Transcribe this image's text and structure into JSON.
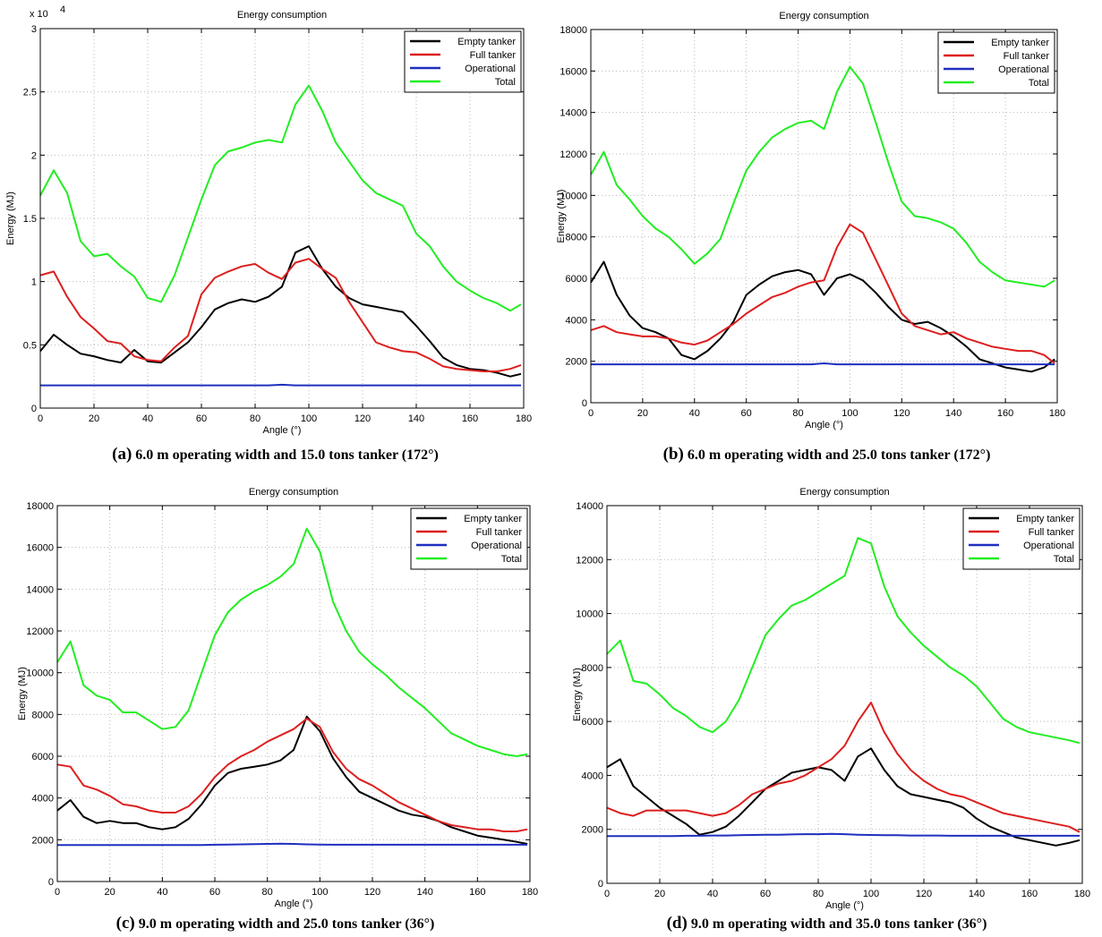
{
  "colors": {
    "empty": "#000000",
    "full": "#dd1f1f",
    "operational": "#1f2fbf",
    "total": "#22ee22",
    "grid": "#b8b8b8"
  },
  "panels": [
    {
      "letter": "(a)",
      "caption": "6.0 m operating width and 15.0 tons tanker (172°)"
    },
    {
      "letter": "(b)",
      "caption": "6.0 m operating width and 25.0 tons tanker (172°)"
    },
    {
      "letter": "(c)",
      "caption": "9.0 m operating width and 25.0 tons tanker (36°)"
    },
    {
      "letter": "(d)",
      "caption": "9.0 m operating width and 35.0 tons tanker (36°)"
    }
  ],
  "chart_data": [
    {
      "type": "line",
      "title": "Energy consumption",
      "xlabel": "Angle (°)",
      "ylabel": "Energy (MJ)",
      "xlim": [
        0,
        180
      ],
      "ylim": [
        0,
        30000
      ],
      "xticks": [
        "0",
        "20",
        "40",
        "60",
        "80",
        "100",
        "120",
        "140",
        "160",
        "180"
      ],
      "yticks": [
        0,
        5000,
        10000,
        15000,
        20000,
        25000,
        30000
      ],
      "ytick_labels": [
        "0",
        "0.5",
        "1",
        "1.5",
        "2",
        "2.5",
        "3"
      ],
      "y_exponent_label": "x 10",
      "y_exponent_power": "4",
      "grid": true,
      "legend_position": "top-right",
      "x": [
        0,
        5,
        10,
        15,
        20,
        25,
        30,
        35,
        40,
        45,
        50,
        55,
        60,
        65,
        70,
        75,
        80,
        85,
        90,
        95,
        100,
        105,
        110,
        115,
        120,
        125,
        130,
        135,
        140,
        145,
        150,
        155,
        160,
        165,
        170,
        175,
        179
      ],
      "series": [
        {
          "name": "Empty tanker",
          "values": [
            4500,
            5800,
            5000,
            4300,
            4100,
            3800,
            3600,
            4600,
            3700,
            3600,
            4400,
            5200,
            6400,
            7800,
            8300,
            8600,
            8400,
            8800,
            9600,
            12300,
            12800,
            11000,
            9600,
            8700,
            8200,
            8000,
            7800,
            7600,
            6500,
            5300,
            4000,
            3400,
            3100,
            3000,
            2800,
            2500,
            2700
          ]
        },
        {
          "name": "Full tanker",
          "values": [
            10500,
            10800,
            8800,
            7200,
            6300,
            5300,
            5100,
            4100,
            3800,
            3700,
            4800,
            5700,
            9000,
            10300,
            10800,
            11200,
            11400,
            10700,
            10200,
            11500,
            11800,
            11000,
            10300,
            8400,
            6800,
            5200,
            4800,
            4500,
            4400,
            3900,
            3300,
            3100,
            3000,
            2900,
            2900,
            3100,
            3400
          ]
        },
        {
          "name": "Operational",
          "values": [
            1800,
            1800,
            1800,
            1800,
            1800,
            1800,
            1800,
            1800,
            1800,
            1800,
            1800,
            1800,
            1800,
            1800,
            1800,
            1800,
            1800,
            1800,
            1850,
            1800,
            1800,
            1800,
            1800,
            1800,
            1800,
            1800,
            1800,
            1800,
            1800,
            1800,
            1800,
            1800,
            1800,
            1800,
            1800,
            1800,
            1800
          ]
        },
        {
          "name": "Total",
          "values": [
            16800,
            18800,
            17000,
            13200,
            12000,
            12200,
            11200,
            10400,
            8700,
            8400,
            10500,
            13500,
            16500,
            19200,
            20300,
            20600,
            21000,
            21200,
            21000,
            24000,
            25500,
            23500,
            21000,
            19500,
            18000,
            17000,
            16500,
            16000,
            13800,
            12800,
            11200,
            10000,
            9300,
            8700,
            8300,
            7700,
            8200
          ]
        }
      ]
    },
    {
      "type": "line",
      "title": "Energy consumption",
      "xlabel": "Angle (°)",
      "ylabel": "Energy (MJ)",
      "xlim": [
        0,
        180
      ],
      "ylim": [
        0,
        18000
      ],
      "xticks": [
        "0",
        "20",
        "40",
        "60",
        "80",
        "100",
        "120",
        "140",
        "160",
        "180"
      ],
      "yticks": [
        0,
        2000,
        4000,
        6000,
        8000,
        10000,
        12000,
        14000,
        16000,
        18000
      ],
      "ytick_labels": [
        "0",
        "2000",
        "4000",
        "6000",
        "8000",
        "10000",
        "12000",
        "14000",
        "16000",
        "18000"
      ],
      "grid": true,
      "legend_position": "top-right",
      "x": [
        0,
        5,
        10,
        15,
        20,
        25,
        30,
        35,
        40,
        45,
        50,
        55,
        60,
        65,
        70,
        75,
        80,
        85,
        90,
        95,
        100,
        105,
        110,
        115,
        120,
        125,
        130,
        135,
        140,
        145,
        150,
        155,
        160,
        165,
        170,
        175,
        179
      ],
      "series": [
        {
          "name": "Empty tanker",
          "values": [
            5800,
            6800,
            5200,
            4200,
            3600,
            3400,
            3100,
            2300,
            2100,
            2500,
            3100,
            3900,
            5200,
            5700,
            6100,
            6300,
            6400,
            6200,
            5200,
            6000,
            6200,
            5900,
            5300,
            4600,
            4000,
            3800,
            3900,
            3600,
            3200,
            2700,
            2100,
            1900,
            1700,
            1600,
            1500,
            1700,
            2100
          ]
        },
        {
          "name": "Full tanker",
          "values": [
            3500,
            3700,
            3400,
            3300,
            3200,
            3200,
            3100,
            2900,
            2800,
            3000,
            3400,
            3800,
            4300,
            4700,
            5100,
            5300,
            5600,
            5800,
            5900,
            7500,
            8600,
            8200,
            6900,
            5600,
            4300,
            3700,
            3500,
            3300,
            3400,
            3100,
            2900,
            2700,
            2600,
            2500,
            2500,
            2300,
            1900
          ]
        },
        {
          "name": "Operational",
          "values": [
            1850,
            1850,
            1850,
            1850,
            1850,
            1850,
            1850,
            1850,
            1850,
            1850,
            1850,
            1850,
            1850,
            1850,
            1850,
            1850,
            1850,
            1850,
            1900,
            1850,
            1850,
            1850,
            1850,
            1850,
            1850,
            1850,
            1850,
            1850,
            1850,
            1850,
            1850,
            1850,
            1850,
            1850,
            1850,
            1850,
            1850
          ]
        },
        {
          "name": "Total",
          "values": [
            11000,
            12100,
            10500,
            9800,
            9000,
            8400,
            8000,
            7400,
            6700,
            7200,
            7900,
            9600,
            11200,
            12100,
            12800,
            13200,
            13500,
            13600,
            13200,
            15000,
            16200,
            15400,
            13500,
            11500,
            9700,
            9000,
            8900,
            8700,
            8400,
            7700,
            6800,
            6300,
            5900,
            5800,
            5700,
            5600,
            5900
          ]
        }
      ]
    },
    {
      "type": "line",
      "title": "Energy consumption",
      "xlabel": "Angle (°)",
      "ylabel": "Energy (MJ)",
      "xlim": [
        0,
        180
      ],
      "ylim": [
        0,
        18000
      ],
      "xticks": [
        "0",
        "20",
        "40",
        "60",
        "80",
        "100",
        "120",
        "140",
        "160",
        "180"
      ],
      "yticks": [
        0,
        2000,
        4000,
        6000,
        8000,
        10000,
        12000,
        14000,
        16000,
        18000
      ],
      "ytick_labels": [
        "0",
        "2000",
        "4000",
        "6000",
        "8000",
        "10000",
        "12000",
        "14000",
        "16000",
        "18000"
      ],
      "grid": true,
      "legend_position": "top-right",
      "x": [
        0,
        5,
        10,
        15,
        20,
        25,
        30,
        35,
        40,
        45,
        50,
        55,
        60,
        65,
        70,
        75,
        80,
        85,
        90,
        95,
        100,
        105,
        110,
        115,
        120,
        125,
        130,
        135,
        140,
        145,
        150,
        155,
        160,
        165,
        170,
        175,
        179
      ],
      "series": [
        {
          "name": "Empty tanker",
          "values": [
            3400,
            3900,
            3100,
            2800,
            2900,
            2800,
            2800,
            2600,
            2500,
            2600,
            3000,
            3700,
            4600,
            5200,
            5400,
            5500,
            5600,
            5800,
            6300,
            7900,
            7200,
            5900,
            5000,
            4300,
            4000,
            3700,
            3400,
            3200,
            3100,
            2900,
            2600,
            2400,
            2200,
            2100,
            2000,
            1900,
            1800
          ]
        },
        {
          "name": "Full tanker",
          "values": [
            5600,
            5500,
            4600,
            4400,
            4100,
            3700,
            3600,
            3400,
            3300,
            3300,
            3600,
            4200,
            5000,
            5600,
            6000,
            6300,
            6700,
            7000,
            7300,
            7800,
            7400,
            6200,
            5400,
            4900,
            4600,
            4200,
            3800,
            3500,
            3200,
            2900,
            2700,
            2600,
            2500,
            2500,
            2400,
            2400,
            2500
          ]
        },
        {
          "name": "Operational",
          "values": [
            1750,
            1750,
            1750,
            1750,
            1750,
            1750,
            1750,
            1750,
            1750,
            1750,
            1750,
            1750,
            1760,
            1770,
            1780,
            1790,
            1800,
            1810,
            1800,
            1780,
            1770,
            1760,
            1760,
            1760,
            1760,
            1760,
            1760,
            1760,
            1760,
            1760,
            1760,
            1760,
            1760,
            1760,
            1760,
            1760,
            1760
          ]
        },
        {
          "name": "Total",
          "values": [
            10500,
            11500,
            9400,
            8900,
            8700,
            8100,
            8100,
            7700,
            7300,
            7400,
            8200,
            10000,
            11800,
            12900,
            13500,
            13900,
            14200,
            14600,
            15200,
            16900,
            15800,
            13400,
            12000,
            11000,
            10400,
            9900,
            9300,
            8800,
            8300,
            7700,
            7100,
            6800,
            6500,
            6300,
            6100,
            6000,
            6100
          ]
        }
      ]
    },
    {
      "type": "line",
      "title": "Energy consumption",
      "xlabel": "Angle (°)",
      "ylabel": "Energy (MJ)",
      "xlim": [
        0,
        180
      ],
      "ylim": [
        0,
        14000
      ],
      "xticks": [
        "0",
        "20",
        "40",
        "60",
        "80",
        "100",
        "120",
        "140",
        "160",
        "180"
      ],
      "yticks": [
        0,
        2000,
        4000,
        6000,
        8000,
        10000,
        12000,
        14000
      ],
      "ytick_labels": [
        "0",
        "2000",
        "4000",
        "6000",
        "8000",
        "10000",
        "12000",
        "14000"
      ],
      "grid": true,
      "legend_position": "top-right",
      "x": [
        0,
        5,
        10,
        15,
        20,
        25,
        30,
        35,
        40,
        45,
        50,
        55,
        60,
        65,
        70,
        75,
        80,
        85,
        90,
        95,
        100,
        105,
        110,
        115,
        120,
        125,
        130,
        135,
        140,
        145,
        150,
        155,
        160,
        165,
        170,
        175,
        179
      ],
      "series": [
        {
          "name": "Empty tanker",
          "values": [
            4300,
            4600,
            3600,
            3200,
            2800,
            2500,
            2200,
            1800,
            1900,
            2100,
            2500,
            3000,
            3500,
            3800,
            4100,
            4200,
            4300,
            4200,
            3800,
            4700,
            5000,
            4200,
            3600,
            3300,
            3200,
            3100,
            3000,
            2800,
            2400,
            2100,
            1900,
            1700,
            1600,
            1500,
            1400,
            1500,
            1600
          ]
        },
        {
          "name": "Full tanker",
          "values": [
            2800,
            2600,
            2500,
            2700,
            2700,
            2700,
            2700,
            2600,
            2500,
            2600,
            2900,
            3300,
            3500,
            3700,
            3800,
            4000,
            4300,
            4600,
            5100,
            6000,
            6700,
            5600,
            4800,
            4200,
            3800,
            3500,
            3300,
            3200,
            3000,
            2800,
            2600,
            2500,
            2400,
            2300,
            2200,
            2100,
            1900
          ]
        },
        {
          "name": "Operational",
          "values": [
            1750,
            1750,
            1750,
            1750,
            1750,
            1750,
            1760,
            1760,
            1770,
            1770,
            1780,
            1790,
            1800,
            1800,
            1810,
            1820,
            1820,
            1830,
            1820,
            1800,
            1790,
            1780,
            1780,
            1770,
            1770,
            1770,
            1760,
            1760,
            1760,
            1760,
            1760,
            1760,
            1760,
            1760,
            1760,
            1760,
            1760
          ]
        },
        {
          "name": "Total",
          "values": [
            8500,
            9000,
            7500,
            7400,
            7000,
            6500,
            6200,
            5800,
            5600,
            6000,
            6800,
            8000,
            9200,
            9800,
            10300,
            10500,
            10800,
            11100,
            11400,
            12800,
            12600,
            11000,
            9900,
            9300,
            8800,
            8400,
            8000,
            7700,
            7300,
            6700,
            6100,
            5800,
            5600,
            5500,
            5400,
            5300,
            5200
          ]
        }
      ]
    }
  ]
}
